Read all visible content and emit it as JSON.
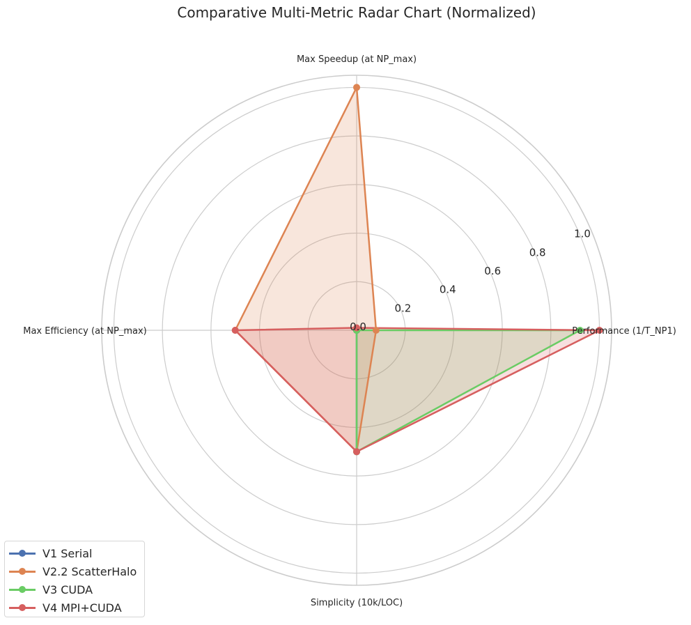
{
  "chart_data": {
    "type": "radar",
    "title": "Comparative Multi-Metric Radar Chart (Normalized)",
    "axes": [
      "Performance (1/T_NP1)",
      "Max Speedup (at NP_max)",
      "Max Efficiency (at NP_max)",
      "Simplicity (10k/LOC)"
    ],
    "rlim": [
      0,
      1.05
    ],
    "radial_ticks": [
      0.0,
      0.2,
      0.4,
      0.6,
      0.8,
      1.0
    ],
    "radial_tick_labels": [
      "0.0",
      "0.2",
      "0.4",
      "0.6",
      "0.8",
      "1.0"
    ],
    "grid": true,
    "legend_position": "lower-left",
    "series": [
      {
        "name": "V1 Serial",
        "color": "#4c72b0",
        "values": [
          0.0,
          0.0,
          0.0,
          0.5
        ]
      },
      {
        "name": "V2.2 ScatterHalo",
        "color": "#dd8452",
        "values": [
          0.08,
          1.0,
          0.5,
          0.5
        ]
      },
      {
        "name": "V3 CUDA",
        "color": "#6acc64",
        "values": [
          0.92,
          0.0,
          0.0,
          0.5
        ]
      },
      {
        "name": "V4 MPI+CUDA",
        "color": "#d65f5f",
        "values": [
          1.0,
          0.01,
          0.5,
          0.5
        ]
      }
    ]
  }
}
